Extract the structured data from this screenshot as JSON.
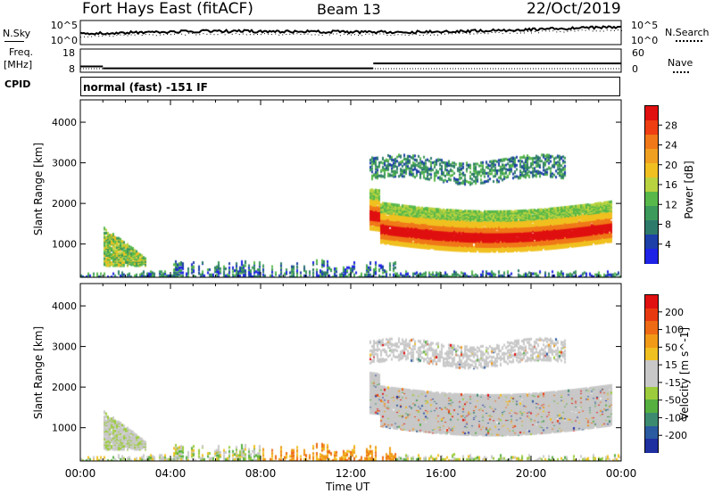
{
  "header": {
    "title": "Fort Hays East (fitACF)",
    "beam": "Beam 13",
    "date": "22/Oct/2019"
  },
  "noise_panel": {
    "left_label": "N.Sky",
    "right_label": "N.Search",
    "ticks_left": [
      "10^5",
      "10^0"
    ],
    "ticks_right": [
      "10^5",
      "10^0"
    ]
  },
  "freq_panel": {
    "left_label_1": "Freq.",
    "left_label_2": "[MHz]",
    "right_label": "Nave",
    "ticks_left": [
      18,
      8
    ],
    "ticks_right": [
      60,
      0
    ],
    "freq_steps": [
      {
        "start_h": 0.0,
        "end_h": 1.0,
        "value": 10.5
      },
      {
        "start_h": 1.0,
        "end_h": 13.0,
        "value": 9.7
      },
      {
        "start_h": 13.0,
        "end_h": 24.0,
        "value": 11.8
      }
    ]
  },
  "cpid": {
    "label": "CPID",
    "text": "normal (fast) -151 IF"
  },
  "chart_data": [
    {
      "type": "heatmap",
      "name": "power",
      "ylabel": "Slant Range [km]",
      "ylim": [
        180,
        4550
      ],
      "yticks": [
        1000,
        2000,
        3000,
        4000
      ],
      "colorbar_label": "Power [dB]",
      "colorbar_ticks": [
        4,
        8,
        12,
        16,
        20,
        24,
        28
      ],
      "colorbar_range": [
        0,
        32
      ],
      "colors": [
        "#1e22e6",
        "#1c3fa8",
        "#2d7a6a",
        "#3c9a5a",
        "#58b84a",
        "#b8d240",
        "#f0c020",
        "#f0a020",
        "#f07818",
        "#ee3e12",
        "#e01010"
      ]
    },
    {
      "type": "heatmap",
      "name": "velocity",
      "ylabel": "Slant Range [km]",
      "ylim": [
        180,
        4550
      ],
      "yticks": [
        1000,
        2000,
        3000,
        4000
      ],
      "colorbar_label": "Velocity [m s^-1]",
      "colorbar_ticks": [
        "200",
        "100",
        "50",
        "15",
        "-15",
        "-50",
        "-100",
        "-200"
      ],
      "colors": [
        "#1e2fa0",
        "#2a5aa0",
        "#3c8a70",
        "#56b040",
        "#9ccc3c",
        "#c8c8c8",
        "#c8c8c8",
        "#f0c020",
        "#f09a18",
        "#ee6a14",
        "#e83a10",
        "#e01010"
      ]
    }
  ],
  "time_axis": {
    "ticks": [
      "00:00",
      "04:00",
      "08:00",
      "12:00",
      "16:00",
      "20:00",
      "00:00"
    ],
    "label": "Time UT"
  }
}
